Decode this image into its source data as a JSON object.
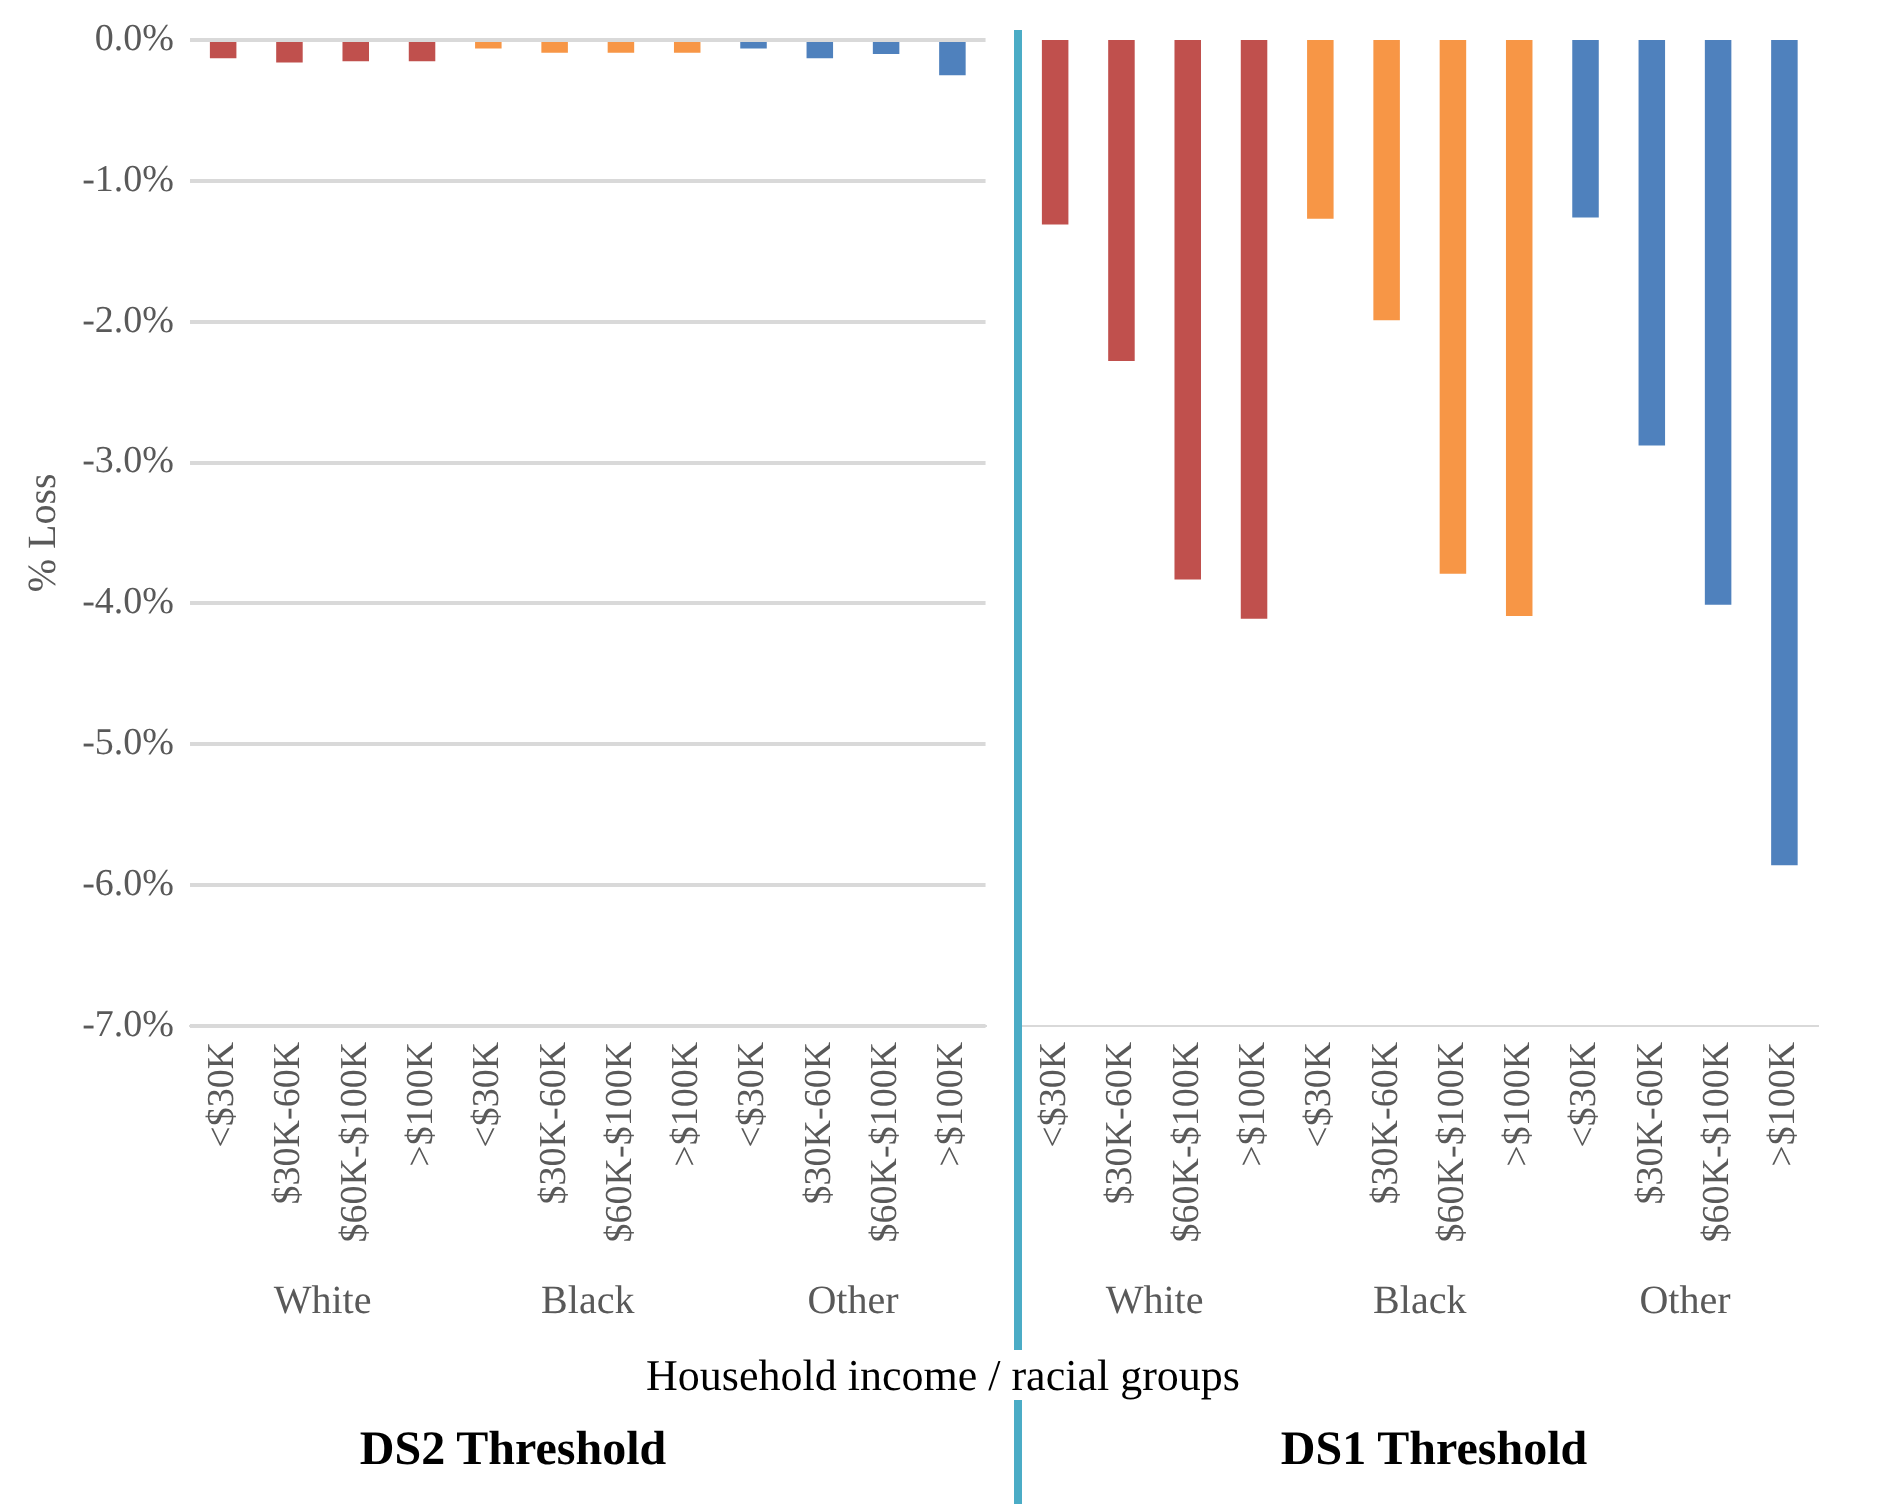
{
  "chart_data": [
    {
      "type": "bar",
      "title": "DS2 Threshold",
      "xlabel": "Household income / racial groups",
      "ylabel": "% Loss",
      "categories": [
        "<$30K",
        "$30K-60K",
        "$60K-$100K",
        ">$100K",
        "<$30K",
        "$30K-60K",
        "$60K-$100K",
        ">$100K",
        "<$30K",
        "$30K-60K",
        "$60K-$100K",
        ">$100K"
      ],
      "values": [
        -0.13,
        -0.16,
        -0.15,
        -0.15,
        -0.06,
        -0.09,
        -0.09,
        -0.09,
        -0.06,
        -0.13,
        -0.1,
        -0.25
      ],
      "colors": [
        "#c0504d",
        "#c0504d",
        "#c0504d",
        "#c0504d",
        "#f79646",
        "#f79646",
        "#f79646",
        "#f79646",
        "#4f81bd",
        "#4f81bd",
        "#4f81bd",
        "#4f81bd"
      ],
      "ylim": [
        -7,
        0
      ],
      "yticks": [
        {
          "value": 0,
          "label": "0.0%"
        },
        {
          "value": -1,
          "label": "-1.0%"
        },
        {
          "value": -2,
          "label": "-2.0%"
        },
        {
          "value": -3,
          "label": "-3.0%"
        },
        {
          "value": -4,
          "label": "-4.0%"
        },
        {
          "value": -5,
          "label": "-5.0%"
        },
        {
          "value": -6,
          "label": "-6.0%"
        },
        {
          "value": -7,
          "label": "-7.0%"
        }
      ],
      "grid": "y",
      "legend": false,
      "annotations": [
        "White",
        "Black",
        "Other"
      ]
    },
    {
      "type": "bar",
      "title": "DS1 Threshold",
      "categories": [
        "<$30K",
        "$30K-60K",
        "$60K-$100K",
        ">$100K",
        "<$30K",
        "$30K-60K",
        "$60K-$100K",
        ">$100K",
        "<$30K",
        "$30K-60K",
        "$60K-$100K",
        ">$100K"
      ],
      "values": [
        -1.31,
        -2.28,
        -3.83,
        -4.11,
        -1.27,
        -1.99,
        -3.79,
        -4.09,
        -1.26,
        -2.88,
        -4.01,
        -5.86
      ],
      "colors": [
        "#c0504d",
        "#c0504d",
        "#c0504d",
        "#c0504d",
        "#f79646",
        "#f79646",
        "#f79646",
        "#f79646",
        "#4f81bd",
        "#4f81bd",
        "#4f81bd",
        "#4f81bd"
      ],
      "ylim": [
        -7,
        0
      ],
      "yticks": [
        {
          "value": 0,
          "label": null
        },
        {
          "value": -1,
          "label": null
        },
        {
          "value": -2,
          "label": null
        },
        {
          "value": -3,
          "label": null
        },
        {
          "value": -4,
          "label": null
        },
        {
          "value": -5,
          "label": null
        },
        {
          "value": -6,
          "label": null
        },
        {
          "value": -7,
          "label": null
        }
      ],
      "grid": "y",
      "legend": false,
      "tick_labels": "x",
      "annotations": [
        "White",
        "Black",
        "Other"
      ]
    }
  ]
}
